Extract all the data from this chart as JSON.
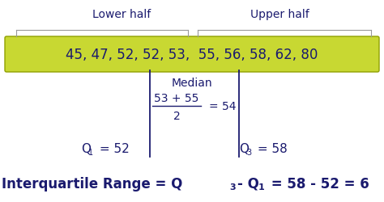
{
  "bg_color": "#ffffff",
  "text_color_dark": "#1a1a6e",
  "green_box_color": "#c8d832",
  "green_box_edge": "#8fa000",
  "bracket_color": "#999999",
  "lower_half_label": "Lower half",
  "upper_half_label": "Upper half",
  "data_text": "45, 47, 52, 52, 53,  55, 56, 58, 62, 80",
  "median_label": "Median",
  "median_fraction_num": "53 + 55",
  "median_fraction_den": "2",
  "median_result": "= 54",
  "q1_label": "Q",
  "q1_sub": "1",
  "q1_value": "= 52",
  "q3_label": "Q",
  "q3_sub": "3",
  "q3_value": "= 58",
  "iqr_prefix": "Interquartile Range = Q",
  "iqr_sub1": "3",
  "iqr_mid": "- Q",
  "iqr_sub2": "1",
  "iqr_suffix": "= 58 - 52 = 6"
}
